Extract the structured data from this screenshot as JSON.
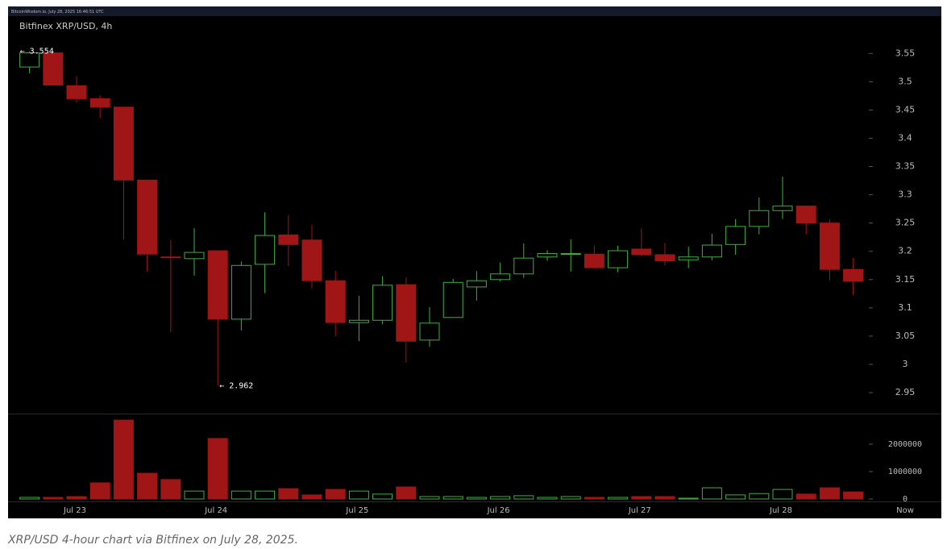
{
  "header": "BitcoinWisdom.io, July 28, 2025 16:46:51 UTC",
  "caption": "XRP/USD 4-hour chart via Bitfinex on July 28, 2025.",
  "chart_data": [
    {
      "type": "candlestick",
      "title": "Bitfinex XRP/USD, 4h",
      "open": [
        3.526,
        3.551,
        3.493,
        3.47,
        3.455,
        3.326,
        3.19,
        3.187,
        3.201,
        3.08,
        3.177,
        3.229,
        3.22,
        3.148,
        3.074,
        3.078,
        3.141,
        3.043,
        3.083,
        3.137,
        3.15,
        3.16,
        3.19,
        3.195,
        3.195,
        3.171,
        3.204,
        3.194,
        3.185,
        3.19,
        3.212,
        3.244,
        3.272,
        3.28,
        3.25,
        3.168
      ],
      "high": [
        3.554,
        3.554,
        3.51,
        3.476,
        3.455,
        3.326,
        3.22,
        3.241,
        3.201,
        3.182,
        3.269,
        3.264,
        3.247,
        3.165,
        3.121,
        3.156,
        3.154,
        3.101,
        3.151,
        3.165,
        3.18,
        3.214,
        3.202,
        3.221,
        3.21,
        3.21,
        3.241,
        3.215,
        3.208,
        3.231,
        3.257,
        3.295,
        3.332,
        3.28,
        3.257,
        3.188
      ],
      "low": [
        3.515,
        3.494,
        3.463,
        3.436,
        3.221,
        3.164,
        3.057,
        3.157,
        2.962,
        3.06,
        3.126,
        3.174,
        3.134,
        3.05,
        3.041,
        3.071,
        3.003,
        3.031,
        3.083,
        3.113,
        3.147,
        3.153,
        3.183,
        3.164,
        3.17,
        3.163,
        3.191,
        3.175,
        3.17,
        3.184,
        3.194,
        3.23,
        3.257,
        3.23,
        3.148,
        3.123
      ],
      "close": [
        3.551,
        3.494,
        3.47,
        3.455,
        3.326,
        3.195,
        3.189,
        3.198,
        3.08,
        3.175,
        3.228,
        3.212,
        3.148,
        3.074,
        3.078,
        3.14,
        3.041,
        3.073,
        3.145,
        3.148,
        3.16,
        3.188,
        3.196,
        3.196,
        3.171,
        3.201,
        3.194,
        3.183,
        3.19,
        3.211,
        3.244,
        3.272,
        3.28,
        3.25,
        3.168,
        3.147
      ],
      "up_color": "#3fae3f",
      "down_color": "#a01515",
      "annotations": [
        {
          "text": "← 3.554",
          "at": "max"
        },
        {
          "text": "← 2.962",
          "at": "min"
        }
      ],
      "ylim": [
        2.913,
        3.616
      ],
      "yticks": [
        2.95,
        3,
        3.05,
        3.1,
        3.15,
        3.2,
        3.25,
        3.3,
        3.35,
        3.4,
        3.45,
        3.5,
        3.55
      ]
    },
    {
      "type": "volume",
      "categories": [
        null,
        null,
        "Jul 23",
        null,
        null,
        null,
        null,
        null,
        "Jul 24",
        null,
        null,
        null,
        null,
        null,
        "Jul 25",
        null,
        null,
        null,
        null,
        null,
        "Jul 26",
        null,
        null,
        null,
        null,
        null,
        "Jul 27",
        null,
        null,
        null,
        null,
        null,
        "Jul 28",
        null,
        null,
        null
      ],
      "x_end_label": "Now",
      "values": [
        60000,
        60000,
        90000,
        590000,
        2880000,
        940000,
        710000,
        290000,
        2210000,
        290000,
        290000,
        380000,
        150000,
        350000,
        290000,
        180000,
        440000,
        90000,
        90000,
        60000,
        90000,
        120000,
        60000,
        90000,
        60000,
        60000,
        90000,
        90000,
        30000,
        410000,
        150000,
        200000,
        350000,
        180000,
        410000,
        260000
      ],
      "ylim": [
        0,
        3060000
      ],
      "yticks": [
        0,
        1000000,
        2000000
      ]
    }
  ]
}
